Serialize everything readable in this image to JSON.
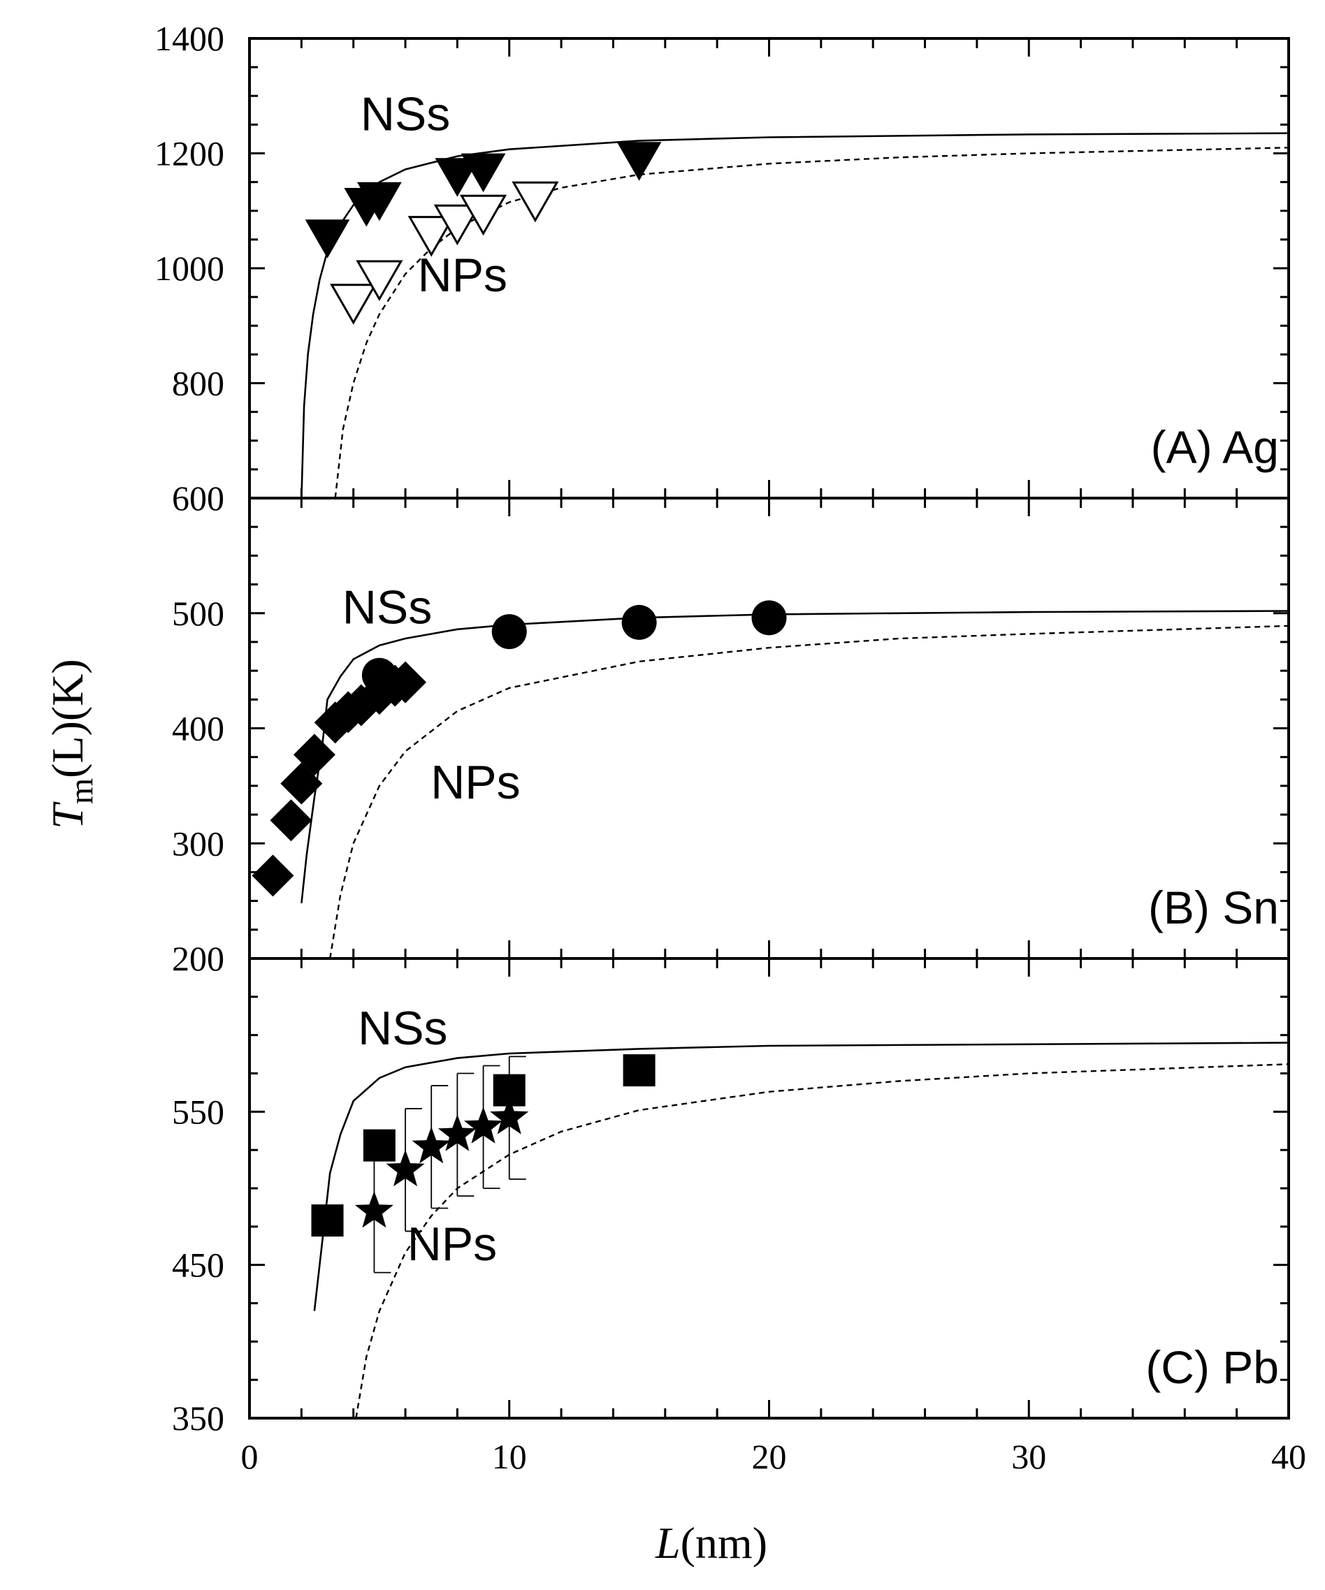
{
  "chart_data": {
    "type": "scatter",
    "title": "",
    "xlabel": {
      "prefix": "L",
      "suffix": "(nm)"
    },
    "ylabel": {
      "main": "T",
      "sub": "m",
      "tail": "(L)(K)"
    },
    "x_axis": {
      "range": [
        0,
        40
      ],
      "ticks": [
        "0",
        "10",
        "20",
        "30",
        "40"
      ]
    },
    "panels": [
      {
        "id": "A",
        "label": "(A) Ag",
        "ylim": [
          600,
          1400
        ],
        "ytick_values": [
          600,
          800,
          1000,
          1200,
          1400
        ],
        "ytick_labels": [
          "600",
          "800",
          "1000",
          "1200",
          "1400"
        ],
        "annotations": [
          {
            "text": "NSs",
            "x": 6.0,
            "y": 1240
          },
          {
            "text": "NPs",
            "x": 8.2,
            "y": 960
          }
        ],
        "curves": [
          {
            "name": "NSs",
            "style": "solid",
            "x": [
              2.0,
              2.1,
              2.25,
              2.45,
              2.7,
              3.0,
              3.4,
              4.0,
              5.0,
              6.0,
              8.0,
              10.0,
              15.0,
              20.0,
              30.0,
              40.0
            ],
            "y": [
              600,
              760,
              850,
              920,
              980,
              1030,
              1070,
              1110,
              1150,
              1172,
              1195,
              1207,
              1222,
              1228,
              1233,
              1235
            ]
          },
          {
            "name": "NPs",
            "style": "dashed",
            "x": [
              3.3,
              3.6,
              4.0,
              4.5,
              5.0,
              6.0,
              7.0,
              8.0,
              10.0,
              12.0,
              15.0,
              20.0,
              25.0,
              30.0,
              40.0
            ],
            "y": [
              600,
              720,
              800,
              870,
              920,
              990,
              1035,
              1070,
              1115,
              1140,
              1163,
              1182,
              1193,
              1200,
              1210
            ]
          }
        ],
        "series": [
          {
            "name": "NSs data",
            "marker": "triangle-down-filled",
            "x": [
              3.0,
              4.5,
              5.0,
              8.0,
              9.0,
              15.0
            ],
            "y": [
              1055,
              1110,
              1120,
              1162,
              1170,
              1190
            ]
          },
          {
            "name": "NPs data",
            "marker": "triangle-down-open",
            "x": [
              4.0,
              5.0,
              7.0,
              8.0,
              9.0,
              11.0
            ],
            "y": [
              942,
              983,
              1060,
              1080,
              1097,
              1120
            ]
          }
        ]
      },
      {
        "id": "B",
        "label": "(B) Sn",
        "ylim": [
          200,
          600
        ],
        "ytick_values": [
          200,
          300,
          400,
          500
        ],
        "ytick_labels": [
          "200",
          "300",
          "400",
          "500"
        ],
        "annotations": [
          {
            "text": "NSs",
            "x": 5.3,
            "y": 491
          },
          {
            "text": "NPs",
            "x": 8.7,
            "y": 339
          }
        ],
        "curves": [
          {
            "name": "NSs",
            "style": "solid",
            "x": [
              2.0,
              2.2,
              2.5,
              2.8,
              3.0,
              3.5,
              4.0,
              5.0,
              6.0,
              8.0,
              10.0,
              15.0,
              20.0,
              30.0,
              40.0
            ],
            "y": [
              248,
              290,
              340,
              385,
              425,
              445,
              460,
              472,
              478,
              486,
              490,
              496,
              499,
              501,
              502
            ]
          },
          {
            "name": "NPs",
            "style": "dashed",
            "x": [
              3.1,
              3.5,
              4.0,
              5.0,
              6.0,
              8.0,
              10.0,
              15.0,
              20.0,
              25.0,
              30.0,
              40.0
            ],
            "y": [
              200,
              255,
              300,
              350,
              380,
              415,
              435,
              458,
              470,
              478,
              482,
              489
            ]
          }
        ],
        "series": [
          {
            "name": "Sn spheres",
            "marker": "circle-filled",
            "x": [
              5.0,
              10.0,
              15.0,
              20.0
            ],
            "y": [
              446,
              484,
              492,
              496
            ]
          },
          {
            "name": "Sn diamonds",
            "marker": "diamond-filled",
            "x": [
              0.9,
              1.6,
              2.0,
              2.5,
              3.3,
              3.8,
              4.3,
              5.0,
              5.6,
              6.0
            ],
            "y": [
              272,
              320,
              352,
              377,
              405,
              414,
              420,
              430,
              437,
              440
            ]
          }
        ]
      },
      {
        "id": "C",
        "label": "(C) Pb",
        "ylim": [
          350,
          650
        ],
        "ytick_values": [
          350,
          450,
          550
        ],
        "ytick_labels": [
          "350",
          "450",
          "550"
        ],
        "minor_ytick_values": [
          375,
          400,
          425,
          475,
          500,
          525,
          575,
          600,
          625
        ],
        "annotations": [
          {
            "text": "NSs",
            "x": 5.9,
            "y": 594
          },
          {
            "text": "NPs",
            "x": 7.8,
            "y": 453
          }
        ],
        "curves": [
          {
            "name": "NSs",
            "style": "solid",
            "x": [
              2.5,
              2.8,
              3.1,
              3.5,
              4.0,
              5.0,
              6.0,
              8.0,
              10.0,
              15.0,
              20.0,
              30.0,
              40.0
            ],
            "y": [
              420,
              465,
              510,
              535,
              557,
              572,
              579,
              585,
              588,
              591,
              593,
              594,
              595
            ]
          },
          {
            "name": "NPs",
            "style": "dashed",
            "x": [
              4.1,
              4.5,
              5.0,
              6.0,
              7.0,
              8.0,
              10.0,
              12.0,
              15.0,
              20.0,
              25.0,
              30.0,
              40.0
            ],
            "y": [
              350,
              390,
              420,
              458,
              482,
              500,
              522,
              537,
              551,
              563,
              570,
              575,
              581
            ]
          }
        ],
        "series": [
          {
            "name": "Pb squares",
            "marker": "square-filled",
            "x": [
              3.0,
              5.0,
              10.0,
              15.0
            ],
            "y": [
              479,
              528,
              564,
              577
            ]
          },
          {
            "name": "Pb stars",
            "marker": "star-filled",
            "x": [
              4.8,
              6.0,
              7.0,
              8.0,
              9.0,
              10.0
            ],
            "y": [
              485,
              512,
              527,
              535,
              540,
              546
            ],
            "error": [
              40,
              40,
              40,
              40,
              40,
              40
            ]
          }
        ]
      }
    ]
  }
}
